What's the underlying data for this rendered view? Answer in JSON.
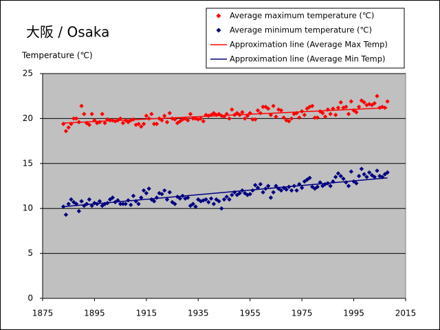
{
  "chart_data": {
    "type": "scatter",
    "title": "大阪 / Osaka",
    "y_label": "Temperature (℃)",
    "xlim": [
      1875,
      2015
    ],
    "xticks": [
      1875,
      1895,
      1915,
      1935,
      1955,
      1975,
      1995,
      2015
    ],
    "ylim": [
      0,
      25
    ],
    "yticks": [
      0,
      5,
      10,
      15,
      20,
      25
    ],
    "grid": true,
    "plot_background": "#c0c0c0",
    "legend": "top-right",
    "series": [
      {
        "name": "Average maximum temperature (℃)",
        "color": "#ff0000",
        "marker": "diamond",
        "x": [
          1883,
          1884,
          1885,
          1886,
          1887,
          1888,
          1889,
          1890,
          1891,
          1892,
          1893,
          1894,
          1895,
          1896,
          1897,
          1898,
          1899,
          1900,
          1901,
          1902,
          1903,
          1904,
          1905,
          1906,
          1907,
          1908,
          1909,
          1910,
          1911,
          1912,
          1913,
          1914,
          1915,
          1916,
          1917,
          1918,
          1919,
          1920,
          1921,
          1922,
          1923,
          1924,
          1925,
          1926,
          1927,
          1928,
          1929,
          1930,
          1931,
          1932,
          1933,
          1934,
          1935,
          1936,
          1937,
          1938,
          1939,
          1940,
          1941,
          1942,
          1943,
          1944,
          1945,
          1946,
          1947,
          1948,
          1949,
          1950,
          1951,
          1952,
          1953,
          1954,
          1955,
          1956,
          1957,
          1958,
          1959,
          1960,
          1961,
          1962,
          1963,
          1964,
          1965,
          1966,
          1967,
          1968,
          1969,
          1970,
          1971,
          1972,
          1973,
          1974,
          1975,
          1976,
          1977,
          1978,
          1979,
          1980,
          1981,
          1982,
          1983,
          1984,
          1985,
          1986,
          1987,
          1988,
          1989,
          1990,
          1991,
          1992,
          1993,
          1994,
          1995,
          1996,
          1997,
          1998,
          1999,
          2000,
          2001,
          2002,
          2003,
          2004,
          2005,
          2006,
          2007,
          2008
        ],
        "values": [
          19.4,
          18.6,
          19.0,
          19.4,
          20.0,
          20.0,
          19.6,
          21.4,
          20.5,
          19.5,
          19.3,
          20.5,
          19.8,
          19.5,
          19.6,
          20.5,
          19.5,
          19.9,
          19.8,
          19.8,
          19.7,
          19.8,
          20.0,
          19.5,
          19.8,
          19.6,
          19.8,
          19.9,
          19.3,
          19.4,
          19.1,
          19.4,
          20.3,
          20.0,
          20.5,
          19.4,
          19.4,
          20.0,
          19.8,
          20.3,
          19.6,
          20.6,
          20.0,
          19.9,
          19.5,
          19.7,
          19.9,
          20.0,
          19.8,
          20.5,
          20.0,
          20.0,
          19.9,
          20.0,
          19.7,
          20.4,
          20.3,
          20.4,
          20.6,
          20.4,
          20.5,
          20.3,
          20.2,
          20.5,
          20.0,
          21.0,
          20.4,
          20.6,
          20.4,
          20.7,
          20.0,
          20.3,
          20.6,
          19.9,
          19.9,
          20.9,
          20.6,
          21.3,
          21.3,
          21.1,
          20.4,
          21.4,
          20.2,
          21.0,
          20.9,
          20.1,
          19.8,
          19.7,
          20.0,
          20.5,
          20.6,
          20.1,
          20.8,
          20.4,
          21.1,
          21.3,
          21.4,
          20.1,
          20.1,
          20.8,
          20.6,
          20.2,
          21.0,
          20.5,
          21.1,
          20.4,
          21.2,
          21.8,
          21.2,
          21.3,
          20.5,
          21.9,
          20.9,
          20.7,
          21.3,
          22.0,
          21.8,
          21.5,
          21.6,
          21.5,
          21.7,
          22.5,
          21.2,
          21.3,
          21.2,
          21.9
        ]
      },
      {
        "name": "Average minimum temperature (℃)",
        "color": "#000080",
        "marker": "diamond",
        "x": [
          1883,
          1884,
          1885,
          1886,
          1887,
          1888,
          1889,
          1890,
          1891,
          1892,
          1893,
          1894,
          1895,
          1896,
          1897,
          1898,
          1899,
          1900,
          1901,
          1902,
          1903,
          1904,
          1905,
          1906,
          1907,
          1908,
          1909,
          1910,
          1911,
          1912,
          1913,
          1914,
          1915,
          1916,
          1917,
          1918,
          1919,
          1920,
          1921,
          1922,
          1923,
          1924,
          1925,
          1926,
          1927,
          1928,
          1929,
          1930,
          1931,
          1932,
          1933,
          1934,
          1935,
          1936,
          1937,
          1938,
          1939,
          1940,
          1941,
          1942,
          1943,
          1944,
          1945,
          1946,
          1947,
          1948,
          1949,
          1950,
          1951,
          1952,
          1953,
          1954,
          1955,
          1956,
          1957,
          1958,
          1959,
          1960,
          1961,
          1962,
          1963,
          1964,
          1965,
          1966,
          1967,
          1968,
          1969,
          1970,
          1971,
          1972,
          1973,
          1974,
          1975,
          1976,
          1977,
          1978,
          1979,
          1980,
          1981,
          1982,
          1983,
          1984,
          1985,
          1986,
          1987,
          1988,
          1989,
          1990,
          1991,
          1992,
          1993,
          1994,
          1995,
          1996,
          1997,
          1998,
          1999,
          2000,
          2001,
          2002,
          2003,
          2004,
          2005,
          2006,
          2007,
          2008
        ],
        "values": [
          10.2,
          9.3,
          10.5,
          11.0,
          10.7,
          10.5,
          9.7,
          10.8,
          10.3,
          10.5,
          11.0,
          10.3,
          10.6,
          10.5,
          10.8,
          10.3,
          10.5,
          10.6,
          11.0,
          11.2,
          10.7,
          10.9,
          10.5,
          10.5,
          10.5,
          10.9,
          10.4,
          11.4,
          10.8,
          10.5,
          11.2,
          12.0,
          11.7,
          12.2,
          11.0,
          10.8,
          11.2,
          11.7,
          11.6,
          12.0,
          11.0,
          11.8,
          10.7,
          10.5,
          11.3,
          11.1,
          11.4,
          11.1,
          11.2,
          10.3,
          10.5,
          10.2,
          11.0,
          10.8,
          10.9,
          11.0,
          10.7,
          11.1,
          10.5,
          11.0,
          10.8,
          10.0,
          11.0,
          11.3,
          11.0,
          11.5,
          11.8,
          11.5,
          11.7,
          12.0,
          11.7,
          11.5,
          11.6,
          12.0,
          12.6,
          12.3,
          12.7,
          11.8,
          12.2,
          12.5,
          11.2,
          11.8,
          12.5,
          12.2,
          12.0,
          12.3,
          12.1,
          12.4,
          12.0,
          12.5,
          12.0,
          12.7,
          12.3,
          13.0,
          13.2,
          13.4,
          12.4,
          12.2,
          12.4,
          12.9,
          12.5,
          12.7,
          12.8,
          12.5,
          13.0,
          13.5,
          13.9,
          13.6,
          13.3,
          12.9,
          12.5,
          14.1,
          13.0,
          12.8,
          13.6,
          14.4,
          13.8,
          13.5,
          14.0,
          13.7,
          13.5,
          14.2,
          13.6,
          13.5,
          13.8,
          14.0
        ]
      },
      {
        "name": "Approximation line (Average Max Temp)",
        "color": "#ff0000",
        "marker": "line",
        "x": [
          1883,
          2008
        ],
        "values": [
          19.5,
          21.2
        ]
      },
      {
        "name": "Approximation line (Average Min Temp)",
        "color": "#000080",
        "marker": "line",
        "x": [
          1883,
          2008
        ],
        "values": [
          10.2,
          13.4
        ]
      }
    ]
  }
}
